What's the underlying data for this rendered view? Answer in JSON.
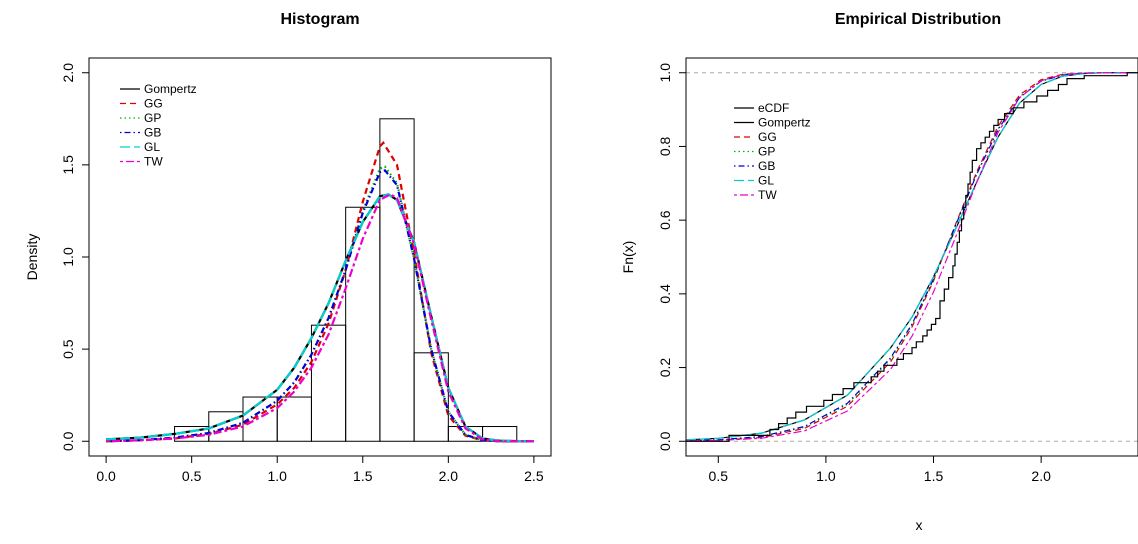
{
  "chart_data": [
    {
      "type": "histogram",
      "title": "Histogram",
      "xlabel": "",
      "ylabel": "Density",
      "xlim": [
        -0.1,
        2.6
      ],
      "ylim": [
        -0.08,
        2.08
      ],
      "xticks": [
        "0.0",
        "0.5",
        "1.0",
        "1.5",
        "2.0",
        "2.5"
      ],
      "yticks": [
        "0.0",
        "0.5",
        "1.0",
        "1.5",
        "2.0"
      ],
      "legend_position": "top-left",
      "grid": false,
      "bins": [
        {
          "x0": 0.4,
          "x1": 0.6,
          "density": 0.08
        },
        {
          "x0": 0.6,
          "x1": 0.8,
          "density": 0.16
        },
        {
          "x0": 0.8,
          "x1": 1.0,
          "density": 0.24
        },
        {
          "x0": 1.0,
          "x1": 1.2,
          "density": 0.24
        },
        {
          "x0": 1.2,
          "x1": 1.4,
          "density": 0.63
        },
        {
          "x0": 1.4,
          "x1": 1.6,
          "density": 1.27
        },
        {
          "x0": 1.6,
          "x1": 1.8,
          "density": 1.75
        },
        {
          "x0": 1.8,
          "x1": 2.0,
          "density": 0.48
        },
        {
          "x0": 2.0,
          "x1": 2.2,
          "density": 0.08
        },
        {
          "x0": 2.2,
          "x1": 2.4,
          "density": 0.08
        }
      ],
      "series": [
        {
          "name": "Gompertz",
          "color": "#000000",
          "dash": "solid",
          "x": [
            0.0,
            0.2,
            0.4,
            0.6,
            0.8,
            1.0,
            1.1,
            1.2,
            1.3,
            1.4,
            1.5,
            1.6,
            1.65,
            1.7,
            1.8,
            1.9,
            2.0,
            2.1,
            2.2,
            2.3,
            2.4,
            2.5
          ],
          "y": [
            0.01,
            0.02,
            0.04,
            0.07,
            0.14,
            0.28,
            0.4,
            0.56,
            0.75,
            0.98,
            1.19,
            1.33,
            1.34,
            1.31,
            1.08,
            0.68,
            0.29,
            0.08,
            0.015,
            0.003,
            0.001,
            0.0
          ]
        },
        {
          "name": "GG",
          "color": "#df0000",
          "dash": "dashed",
          "x": [
            0.0,
            0.2,
            0.4,
            0.6,
            0.8,
            1.0,
            1.1,
            1.2,
            1.3,
            1.4,
            1.5,
            1.6,
            1.62,
            1.7,
            1.8,
            1.9,
            2.0,
            2.1,
            2.2,
            2.3,
            2.4,
            2.5
          ],
          "y": [
            0.0,
            0.005,
            0.015,
            0.04,
            0.09,
            0.2,
            0.29,
            0.43,
            0.64,
            0.93,
            1.3,
            1.6,
            1.62,
            1.5,
            1.02,
            0.48,
            0.14,
            0.03,
            0.005,
            0.0,
            0.0,
            0.0
          ]
        },
        {
          "name": "GP",
          "color": "#00b000",
          "dash": "dotted",
          "x": [
            0.0,
            0.2,
            0.4,
            0.6,
            0.8,
            1.0,
            1.1,
            1.2,
            1.3,
            1.4,
            1.5,
            1.6,
            1.63,
            1.7,
            1.8,
            1.9,
            2.0,
            2.1,
            2.2,
            2.3,
            2.4,
            2.5
          ],
          "y": [
            0.0,
            0.006,
            0.02,
            0.045,
            0.1,
            0.22,
            0.32,
            0.47,
            0.67,
            0.93,
            1.25,
            1.48,
            1.49,
            1.4,
            0.99,
            0.5,
            0.16,
            0.035,
            0.006,
            0.0,
            0.0,
            0.0
          ]
        },
        {
          "name": "GB",
          "color": "#0000dd",
          "dash": "dashdot",
          "x": [
            0.0,
            0.2,
            0.4,
            0.6,
            0.8,
            1.0,
            1.1,
            1.2,
            1.3,
            1.4,
            1.5,
            1.6,
            1.63,
            1.7,
            1.8,
            1.9,
            2.0,
            2.1,
            2.2,
            2.3,
            2.4,
            2.5
          ],
          "y": [
            0.0,
            0.006,
            0.02,
            0.045,
            0.1,
            0.22,
            0.32,
            0.47,
            0.67,
            0.93,
            1.24,
            1.46,
            1.47,
            1.39,
            0.99,
            0.5,
            0.16,
            0.035,
            0.006,
            0.0,
            0.0,
            0.0
          ]
        },
        {
          "name": "GL",
          "color": "#00d0d0",
          "dash": "longdash",
          "x": [
            0.0,
            0.2,
            0.4,
            0.6,
            0.8,
            1.0,
            1.1,
            1.2,
            1.3,
            1.4,
            1.5,
            1.6,
            1.65,
            1.7,
            1.8,
            1.9,
            2.0,
            2.1,
            2.2,
            2.3,
            2.4,
            2.5
          ],
          "y": [
            0.01,
            0.02,
            0.04,
            0.07,
            0.14,
            0.28,
            0.4,
            0.56,
            0.75,
            0.98,
            1.19,
            1.33,
            1.34,
            1.31,
            1.08,
            0.68,
            0.29,
            0.08,
            0.015,
            0.003,
            0.001,
            0.0
          ]
        },
        {
          "name": "TW",
          "color": "#ee00cc",
          "dash": "twodash",
          "x": [
            0.0,
            0.2,
            0.4,
            0.6,
            0.8,
            1.0,
            1.1,
            1.2,
            1.3,
            1.4,
            1.5,
            1.6,
            1.66,
            1.7,
            1.8,
            1.9,
            2.0,
            2.1,
            2.2,
            2.3,
            2.4,
            2.5
          ],
          "y": [
            0.0,
            0.005,
            0.015,
            0.035,
            0.08,
            0.18,
            0.27,
            0.4,
            0.58,
            0.83,
            1.1,
            1.31,
            1.34,
            1.32,
            1.07,
            0.66,
            0.27,
            0.07,
            0.01,
            0.0,
            0.0,
            0.0
          ]
        }
      ]
    },
    {
      "type": "line",
      "title": "Empirical Distribution",
      "xlabel": "x",
      "ylabel": "Fn(x)",
      "xlim": [
        0.35,
        2.45
      ],
      "ylim": [
        -0.04,
        1.04
      ],
      "xticks": [
        "0.5",
        "1.0",
        "1.5",
        "2.0"
      ],
      "yticks": [
        "0.0",
        "0.2",
        "0.4",
        "0.6",
        "0.8",
        "1.0"
      ],
      "reference_lines_y": [
        0,
        1
      ],
      "legend_position": "top-left",
      "grid": false,
      "ecdf": {
        "name": "eCDF",
        "color": "#000000",
        "x": [
          0.55,
          0.74,
          0.78,
          0.82,
          0.86,
          0.91,
          0.99,
          1.03,
          1.08,
          1.13,
          1.21,
          1.24,
          1.27,
          1.33,
          1.36,
          1.4,
          1.42,
          1.45,
          1.47,
          1.49,
          1.51,
          1.53,
          1.55,
          1.57,
          1.59,
          1.6,
          1.61,
          1.62,
          1.63,
          1.64,
          1.65,
          1.66,
          1.67,
          1.68,
          1.7,
          1.72,
          1.74,
          1.76,
          1.78,
          1.8,
          1.83,
          1.87,
          1.92,
          1.98,
          2.03,
          2.08,
          2.12,
          2.2,
          2.4
        ],
        "y": [
          0.016,
          0.032,
          0.048,
          0.063,
          0.079,
          0.095,
          0.111,
          0.127,
          0.143,
          0.159,
          0.175,
          0.19,
          0.206,
          0.222,
          0.238,
          0.254,
          0.27,
          0.286,
          0.302,
          0.317,
          0.333,
          0.381,
          0.413,
          0.444,
          0.476,
          0.508,
          0.54,
          0.571,
          0.603,
          0.635,
          0.667,
          0.698,
          0.73,
          0.762,
          0.794,
          0.81,
          0.825,
          0.841,
          0.857,
          0.873,
          0.889,
          0.905,
          0.921,
          0.937,
          0.952,
          0.968,
          0.984,
          0.992,
          1.0
        ]
      },
      "series": [
        {
          "name": "Gompertz",
          "color": "#000000",
          "dash": "solid",
          "x": [
            0.35,
            0.5,
            0.7,
            0.9,
            1.1,
            1.3,
            1.4,
            1.5,
            1.6,
            1.7,
            1.8,
            1.9,
            2.0,
            2.1,
            2.2,
            2.3,
            2.45
          ],
          "y": [
            0.004,
            0.008,
            0.022,
            0.058,
            0.125,
            0.253,
            0.337,
            0.446,
            0.572,
            0.703,
            0.826,
            0.918,
            0.968,
            0.991,
            0.998,
            1.0,
            1.0
          ]
        },
        {
          "name": "GG",
          "color": "#df0000",
          "dash": "dashed",
          "x": [
            0.35,
            0.5,
            0.7,
            0.9,
            1.1,
            1.3,
            1.4,
            1.5,
            1.6,
            1.7,
            1.8,
            1.9,
            2.0,
            2.1,
            2.2,
            2.3,
            2.45
          ],
          "y": [
            0.001,
            0.003,
            0.01,
            0.035,
            0.095,
            0.215,
            0.31,
            0.435,
            0.585,
            0.73,
            0.855,
            0.94,
            0.981,
            0.996,
            0.999,
            1.0,
            1.0
          ]
        },
        {
          "name": "GP",
          "color": "#00b000",
          "dash": "dotted",
          "x": [
            0.35,
            0.5,
            0.7,
            0.9,
            1.1,
            1.3,
            1.4,
            1.5,
            1.6,
            1.7,
            1.8,
            1.9,
            2.0,
            2.1,
            2.2,
            2.3,
            2.45
          ],
          "y": [
            0.001,
            0.003,
            0.012,
            0.038,
            0.1,
            0.222,
            0.315,
            0.438,
            0.582,
            0.725,
            0.848,
            0.935,
            0.978,
            0.995,
            0.999,
            1.0,
            1.0
          ]
        },
        {
          "name": "GB",
          "color": "#0000dd",
          "dash": "dashdot",
          "x": [
            0.35,
            0.5,
            0.7,
            0.9,
            1.1,
            1.3,
            1.4,
            1.5,
            1.6,
            1.7,
            1.8,
            1.9,
            2.0,
            2.1,
            2.2,
            2.3,
            2.45
          ],
          "y": [
            0.002,
            0.004,
            0.013,
            0.04,
            0.103,
            0.226,
            0.318,
            0.44,
            0.582,
            0.724,
            0.846,
            0.933,
            0.977,
            0.994,
            0.999,
            1.0,
            1.0
          ]
        },
        {
          "name": "GL",
          "color": "#00d0d0",
          "dash": "longdash",
          "x": [
            0.35,
            0.5,
            0.7,
            0.9,
            1.1,
            1.3,
            1.4,
            1.5,
            1.6,
            1.7,
            1.8,
            1.9,
            2.0,
            2.1,
            2.2,
            2.3,
            2.45
          ],
          "y": [
            0.004,
            0.008,
            0.022,
            0.058,
            0.125,
            0.253,
            0.337,
            0.446,
            0.572,
            0.703,
            0.826,
            0.918,
            0.968,
            0.991,
            0.998,
            1.0,
            1.0
          ]
        },
        {
          "name": "TW",
          "color": "#ee00cc",
          "dash": "twodash",
          "x": [
            0.35,
            0.5,
            0.7,
            0.9,
            1.1,
            1.3,
            1.4,
            1.5,
            1.6,
            1.7,
            1.8,
            1.9,
            2.0,
            2.1,
            2.2,
            2.3,
            2.45
          ],
          "y": [
            0.001,
            0.002,
            0.008,
            0.028,
            0.082,
            0.195,
            0.285,
            0.405,
            0.55,
            0.702,
            0.838,
            0.932,
            0.978,
            0.995,
            0.999,
            1.0,
            1.0
          ]
        }
      ]
    }
  ]
}
